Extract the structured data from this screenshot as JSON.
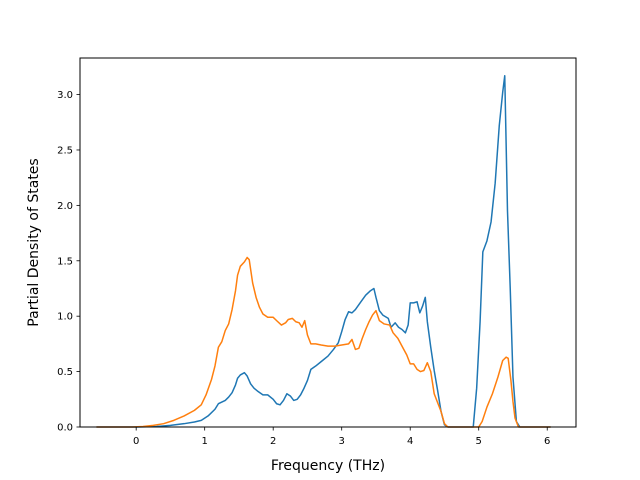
{
  "chart_data": {
    "type": "line",
    "title": "",
    "xlabel": "Frequency (THz)",
    "ylabel": "Partial Density of States",
    "xlim": [
      -0.82,
      6.42
    ],
    "ylim": [
      0.0,
      3.0
    ],
    "x_ticks": [
      0,
      1,
      2,
      3,
      4,
      5,
      6
    ],
    "x_tick_labels": [
      "0",
      "1",
      "2",
      "3",
      "4",
      "5",
      "6"
    ],
    "y_ticks": [
      0.0,
      0.5,
      1.0,
      1.5,
      2.0,
      2.5,
      3.0
    ],
    "y_tick_labels": [
      "0.0",
      "0.5",
      "1.0",
      "1.5",
      "2.0",
      "2.5",
      "3.0"
    ],
    "ylim_display_max": 3.33,
    "grid": false,
    "legend": "none",
    "series": [
      {
        "color": "#1f77b4",
        "points": [
          [
            -0.58,
            0.0
          ],
          [
            0.0,
            0.0
          ],
          [
            0.3,
            0.005
          ],
          [
            0.5,
            0.015
          ],
          [
            0.7,
            0.03
          ],
          [
            0.85,
            0.045
          ],
          [
            0.95,
            0.06
          ],
          [
            1.05,
            0.1
          ],
          [
            1.15,
            0.16
          ],
          [
            1.2,
            0.21
          ],
          [
            1.3,
            0.24
          ],
          [
            1.35,
            0.27
          ],
          [
            1.4,
            0.31
          ],
          [
            1.45,
            0.38
          ],
          [
            1.48,
            0.44
          ],
          [
            1.52,
            0.47
          ],
          [
            1.58,
            0.49
          ],
          [
            1.62,
            0.46
          ],
          [
            1.67,
            0.39
          ],
          [
            1.72,
            0.35
          ],
          [
            1.78,
            0.32
          ],
          [
            1.85,
            0.29
          ],
          [
            1.92,
            0.29
          ],
          [
            2.0,
            0.25
          ],
          [
            2.05,
            0.21
          ],
          [
            2.1,
            0.2
          ],
          [
            2.15,
            0.24
          ],
          [
            2.2,
            0.3
          ],
          [
            2.25,
            0.28
          ],
          [
            2.3,
            0.24
          ],
          [
            2.35,
            0.25
          ],
          [
            2.4,
            0.29
          ],
          [
            2.45,
            0.35
          ],
          [
            2.5,
            0.42
          ],
          [
            2.55,
            0.52
          ],
          [
            2.62,
            0.55
          ],
          [
            2.7,
            0.59
          ],
          [
            2.8,
            0.64
          ],
          [
            2.88,
            0.7
          ],
          [
            2.95,
            0.76
          ],
          [
            3.0,
            0.86
          ],
          [
            3.05,
            0.97
          ],
          [
            3.1,
            1.04
          ],
          [
            3.15,
            1.03
          ],
          [
            3.2,
            1.06
          ],
          [
            3.28,
            1.13
          ],
          [
            3.35,
            1.19
          ],
          [
            3.42,
            1.23
          ],
          [
            3.47,
            1.25
          ],
          [
            3.5,
            1.17
          ],
          [
            3.55,
            1.05
          ],
          [
            3.6,
            1.01
          ],
          [
            3.68,
            0.98
          ],
          [
            3.72,
            0.9
          ],
          [
            3.78,
            0.94
          ],
          [
            3.83,
            0.9
          ],
          [
            3.88,
            0.88
          ],
          [
            3.93,
            0.85
          ],
          [
            3.97,
            0.92
          ],
          [
            4.0,
            1.12
          ],
          [
            4.05,
            1.12
          ],
          [
            4.1,
            1.13
          ],
          [
            4.14,
            1.03
          ],
          [
            4.18,
            1.09
          ],
          [
            4.22,
            1.17
          ],
          [
            4.25,
            0.95
          ],
          [
            4.3,
            0.72
          ],
          [
            4.35,
            0.51
          ],
          [
            4.4,
            0.33
          ],
          [
            4.45,
            0.14
          ],
          [
            4.5,
            0.02
          ],
          [
            4.55,
            0.0
          ],
          [
            4.92,
            0.0
          ],
          [
            4.97,
            0.35
          ],
          [
            5.02,
            0.95
          ],
          [
            5.06,
            1.58
          ],
          [
            5.12,
            1.68
          ],
          [
            5.18,
            1.85
          ],
          [
            5.24,
            2.2
          ],
          [
            5.3,
            2.72
          ],
          [
            5.35,
            3.02
          ],
          [
            5.38,
            3.17
          ],
          [
            5.42,
            1.95
          ],
          [
            5.46,
            1.25
          ],
          [
            5.5,
            0.45
          ],
          [
            5.55,
            0.05
          ],
          [
            5.6,
            0.0
          ],
          [
            6.05,
            0.0
          ]
        ]
      },
      {
        "color": "#ff7f0e",
        "points": [
          [
            -0.58,
            0.0
          ],
          [
            -0.05,
            0.0
          ],
          [
            0.1,
            0.005
          ],
          [
            0.25,
            0.015
          ],
          [
            0.4,
            0.03
          ],
          [
            0.55,
            0.06
          ],
          [
            0.7,
            0.1
          ],
          [
            0.85,
            0.15
          ],
          [
            0.95,
            0.2
          ],
          [
            1.02,
            0.29
          ],
          [
            1.1,
            0.43
          ],
          [
            1.15,
            0.55
          ],
          [
            1.2,
            0.72
          ],
          [
            1.25,
            0.77
          ],
          [
            1.3,
            0.87
          ],
          [
            1.35,
            0.93
          ],
          [
            1.4,
            1.06
          ],
          [
            1.45,
            1.23
          ],
          [
            1.48,
            1.37
          ],
          [
            1.52,
            1.45
          ],
          [
            1.58,
            1.49
          ],
          [
            1.62,
            1.53
          ],
          [
            1.65,
            1.51
          ],
          [
            1.7,
            1.3
          ],
          [
            1.75,
            1.17
          ],
          [
            1.8,
            1.08
          ],
          [
            1.85,
            1.02
          ],
          [
            1.92,
            0.99
          ],
          [
            2.0,
            0.99
          ],
          [
            2.05,
            0.96
          ],
          [
            2.12,
            0.92
          ],
          [
            2.18,
            0.94
          ],
          [
            2.22,
            0.97
          ],
          [
            2.28,
            0.98
          ],
          [
            2.33,
            0.95
          ],
          [
            2.38,
            0.94
          ],
          [
            2.42,
            0.9
          ],
          [
            2.46,
            0.96
          ],
          [
            2.5,
            0.83
          ],
          [
            2.55,
            0.75
          ],
          [
            2.62,
            0.75
          ],
          [
            2.7,
            0.74
          ],
          [
            2.8,
            0.73
          ],
          [
            2.9,
            0.73
          ],
          [
            3.0,
            0.74
          ],
          [
            3.1,
            0.75
          ],
          [
            3.15,
            0.79
          ],
          [
            3.2,
            0.7
          ],
          [
            3.25,
            0.71
          ],
          [
            3.3,
            0.8
          ],
          [
            3.35,
            0.88
          ],
          [
            3.4,
            0.95
          ],
          [
            3.45,
            1.01
          ],
          [
            3.5,
            1.05
          ],
          [
            3.55,
            0.96
          ],
          [
            3.62,
            0.93
          ],
          [
            3.7,
            0.92
          ],
          [
            3.75,
            0.85
          ],
          [
            3.82,
            0.8
          ],
          [
            3.88,
            0.73
          ],
          [
            3.95,
            0.65
          ],
          [
            4.0,
            0.57
          ],
          [
            4.05,
            0.57
          ],
          [
            4.1,
            0.52
          ],
          [
            4.15,
            0.5
          ],
          [
            4.2,
            0.51
          ],
          [
            4.25,
            0.58
          ],
          [
            4.3,
            0.5
          ],
          [
            4.35,
            0.3
          ],
          [
            4.4,
            0.22
          ],
          [
            4.45,
            0.14
          ],
          [
            4.5,
            0.03
          ],
          [
            4.55,
            0.0
          ],
          [
            5.0,
            0.0
          ],
          [
            5.05,
            0.05
          ],
          [
            5.12,
            0.18
          ],
          [
            5.2,
            0.3
          ],
          [
            5.28,
            0.45
          ],
          [
            5.35,
            0.6
          ],
          [
            5.4,
            0.63
          ],
          [
            5.43,
            0.62
          ],
          [
            5.47,
            0.42
          ],
          [
            5.5,
            0.23
          ],
          [
            5.53,
            0.08
          ],
          [
            5.58,
            0.0
          ],
          [
            6.05,
            0.0
          ]
        ]
      }
    ]
  }
}
